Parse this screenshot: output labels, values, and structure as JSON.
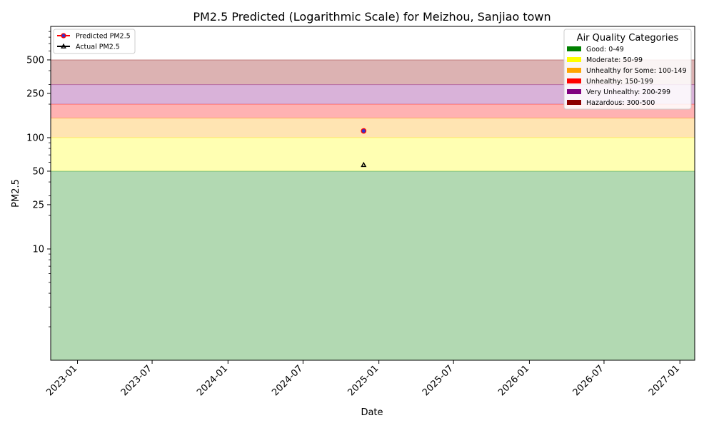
{
  "chart_data": {
    "type": "scatter",
    "title": "PM2.5 Predicted (Logarithmic Scale) for Meizhou, Sanjiao town",
    "xlabel": "Date",
    "ylabel": "PM2.5",
    "x_range": [
      "2022-10-28",
      "2027-02-06"
    ],
    "y_range": [
      1,
      1000
    ],
    "y_scale": "log",
    "y_ticks": [
      10,
      25,
      50,
      100,
      250,
      500
    ],
    "y_tick_labels": [
      "10",
      "25",
      "50",
      "100",
      "250",
      "500"
    ],
    "x_ticks": [
      "2023-01-01",
      "2023-07-01",
      "2024-01-01",
      "2024-07-01",
      "2025-01-01",
      "2025-07-01",
      "2026-01-01",
      "2026-07-01",
      "2027-01-01"
    ],
    "x_tick_labels": [
      "2023-01",
      "2023-07",
      "2024-01",
      "2024-07",
      "2025-01",
      "2025-07",
      "2026-01",
      "2026-07",
      "2027-01"
    ],
    "grid": false,
    "series": [
      {
        "name": "Predicted PM2.5",
        "marker": "circle",
        "line_color": "#ff0000",
        "marker_color": "#3333cc",
        "points": [
          {
            "x": "2024-11-25",
            "y": 115
          }
        ]
      },
      {
        "name": "Actual PM2.5",
        "marker": "triangle",
        "line_color": "#000000",
        "marker_color": "#000000",
        "points": [
          {
            "x": "2024-11-25",
            "y": 57
          }
        ]
      }
    ],
    "bands": [
      {
        "label": "Good: 0-49",
        "from": 0,
        "to": 50,
        "color": "#008000"
      },
      {
        "label": "Moderate: 50-99",
        "from": 50,
        "to": 100,
        "color": "#ffff00"
      },
      {
        "label": "Unhealthy for Some: 100-149",
        "from": 100,
        "to": 150,
        "color": "#ffa500"
      },
      {
        "label": "Unhealthy: 150-199",
        "from": 150,
        "to": 200,
        "color": "#ff0000"
      },
      {
        "label": "Very Unhealthy: 200-299",
        "from": 200,
        "to": 300,
        "color": "#800080"
      },
      {
        "label": "Hazardous: 300-500",
        "from": 300,
        "to": 500,
        "color": "#8b0000"
      }
    ],
    "band_legend_title": "Air Quality Categories",
    "series_legend_position": "top-left",
    "band_legend_position": "top-right"
  }
}
